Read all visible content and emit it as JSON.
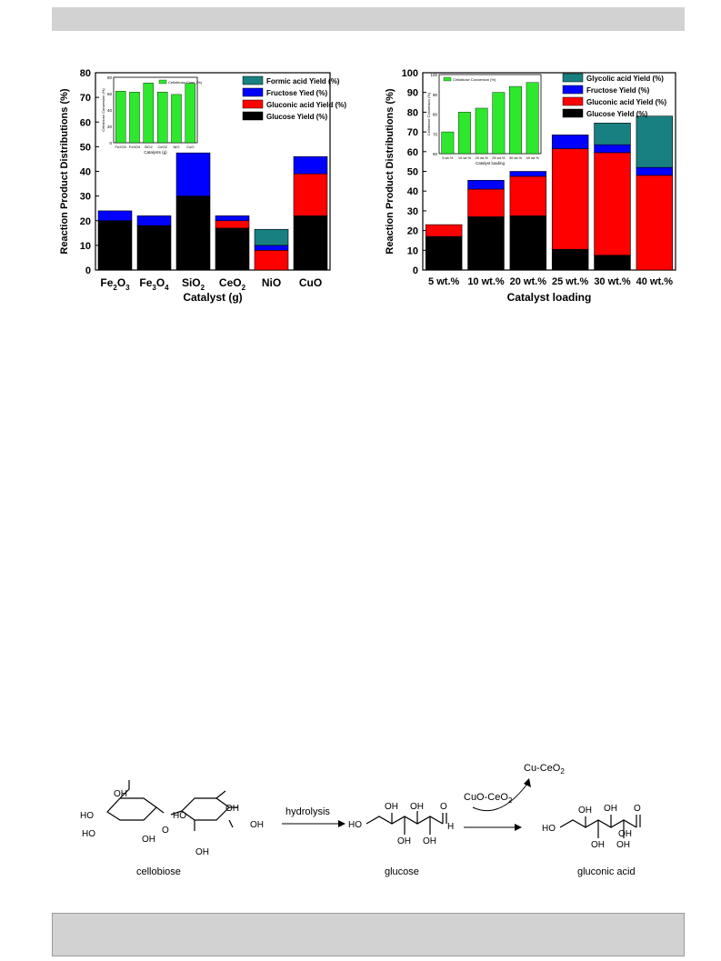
{
  "chart_data": [
    {
      "type": "bar",
      "stacked": true,
      "xlabel": "Catalyst (g)",
      "ylabel": "Reaction Product Distributions (%)",
      "ylim": [
        0,
        80
      ],
      "yticks": [
        0,
        10,
        20,
        30,
        40,
        50,
        60,
        70,
        80
      ],
      "categories": [
        {
          "base": "Fe",
          "s1": "2",
          "mid": "O",
          "s2": "3"
        },
        {
          "base": "Fe",
          "s1": "3",
          "mid": "O",
          "s2": "4"
        },
        {
          "base": "SiO",
          "s1": "2"
        },
        {
          "base": "CeO",
          "s1": "2"
        },
        {
          "base": "NiO"
        },
        {
          "base": "CuO"
        }
      ],
      "series": [
        {
          "name": "Glucose Yield (%)",
          "color": "#000000",
          "values": [
            20,
            18,
            30,
            17,
            0,
            22
          ]
        },
        {
          "name": "Gluconic acid Yield (%)",
          "color": "#ff0000",
          "values": [
            0,
            0,
            0,
            3,
            8,
            17
          ]
        },
        {
          "name": "Fructose Yied (%)",
          "color": "#0000ff",
          "values": [
            4,
            4,
            17.5,
            2,
            2,
            7
          ]
        },
        {
          "name": "Formic acid Yield (%)",
          "color": "#188080",
          "values": [
            0,
            0,
            0,
            0,
            6.5,
            0
          ]
        }
      ],
      "legend_order": [
        3,
        2,
        1,
        0
      ],
      "legend_position": "top-right",
      "inset": {
        "type": "bar",
        "legend": "Cellobiose Conv. (%)",
        "ylabel": "Cellobiose Conversion (%)",
        "xlabel": "Catalysts (g)",
        "ylim": [
          0,
          80
        ],
        "yticks": [
          0,
          20,
          40,
          60,
          80
        ],
        "categories": [
          "Fe2O3",
          "Fe3O4",
          "SiO2",
          "CeO2",
          "NiO",
          "CuO"
        ],
        "values": [
          63,
          62,
          73,
          62,
          59,
          72.5
        ],
        "color": "#2ee82e"
      }
    },
    {
      "type": "bar",
      "stacked": true,
      "xlabel": "Catalyst loading",
      "ylabel": "Reaction Product Distributions (%)",
      "ylim": [
        0,
        100
      ],
      "yticks": [
        0,
        10,
        20,
        30,
        40,
        50,
        60,
        70,
        80,
        90,
        100
      ],
      "categories": [
        "5 wt.%",
        "10 wt.%",
        "20 wt.%",
        "25 wt.%",
        "30 wt.%",
        "40 wt.%"
      ],
      "series": [
        {
          "name": "Glucose Yield (%)",
          "color": "#000000",
          "values": [
            17,
            27,
            27.5,
            10.5,
            7.5,
            0
          ]
        },
        {
          "name": "Gluconic acid Yield (%)",
          "color": "#ff0000",
          "values": [
            6,
            14,
            20,
            51,
            52,
            48
          ]
        },
        {
          "name": "Fructose Yield (%)",
          "color": "#0000ff",
          "values": [
            0,
            4.5,
            2.5,
            7,
            4,
            4
          ]
        },
        {
          "name": "Glycolic acid Yield (%)",
          "color": "#188080",
          "values": [
            0,
            0,
            0,
            0,
            11,
            26
          ]
        }
      ],
      "legend_order": [
        3,
        2,
        1,
        0
      ],
      "legend_position": "top-right",
      "inset": {
        "type": "bar",
        "legend": "Cellobiose Conversion (%)",
        "ylabel": "Cellobiose Conversion (%)",
        "xlabel": "Catalyst loading",
        "ylim": [
          60,
          100
        ],
        "yticks": [
          60,
          70,
          80,
          90,
          100
        ],
        "categories": [
          "5 wt.%",
          "10 wt.%",
          "20 wt.%",
          "25 wt.%",
          "30 wt.%",
          "40 wt.%"
        ],
        "values": [
          71,
          81,
          83,
          91,
          94,
          96
        ],
        "color": "#2ee82e"
      }
    }
  ],
  "scheme": {
    "cellobiose_label": "cellobiose",
    "hydrolysis_label": "hydrolysis",
    "glucose_label": "glucose",
    "catalyst_label": "CuO-CeO",
    "catalyst_sub": "2",
    "product_catalyst_label": "Cu-CeO",
    "product_catalyst_sub": "2",
    "gluconic_label": "gluconic acid",
    "oh": "OH",
    "ho": "HO",
    "o": "O",
    "h": "H",
    "oh_sub": "OH"
  }
}
